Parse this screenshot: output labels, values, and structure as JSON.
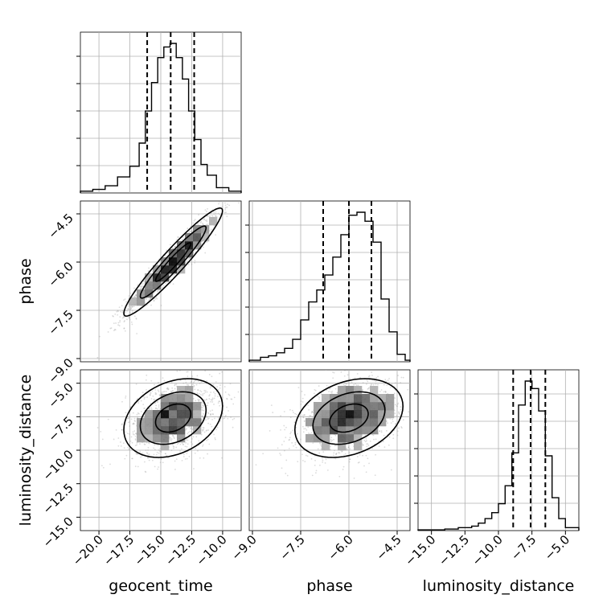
{
  "chart_data": {
    "type": "corner",
    "parameters": [
      {
        "name": "geocent_time",
        "xlabel": "geocent_time",
        "range": [
          -21.5,
          -8.5
        ],
        "ticks": [
          -20.0,
          -17.5,
          -15.0,
          -12.5,
          -10.0
        ],
        "tick_labels": [
          "−20.0",
          "−17.5",
          "−15.0",
          "−12.5",
          "−10.0"
        ],
        "quantiles": [
          -16.1,
          -14.2,
          -12.3
        ],
        "histogram": {
          "bin_edges": [
            -21.5,
            -20.5,
            -19.5,
            -18.5,
            -17.5,
            -16.75,
            -16.25,
            -15.75,
            -15.25,
            -14.75,
            -14.25,
            -13.75,
            -13.25,
            -12.75,
            -12.25,
            -11.75,
            -11.25,
            -10.5,
            -9.5,
            -8.5
          ],
          "heights": [
            1,
            2,
            4,
            9,
            15,
            28,
            46,
            62,
            76,
            82,
            84,
            76,
            64,
            46,
            30,
            16,
            10,
            3,
            1
          ]
        }
      },
      {
        "name": "phase",
        "xlabel": "phase",
        "ylabel": "phase",
        "range": [
          -9.1,
          -4.1
        ],
        "ticks": [
          -9.0,
          -7.5,
          -6.0,
          -4.5
        ],
        "tick_labels": [
          "−9.0",
          "−7.5",
          "−6.0",
          "−4.5"
        ],
        "quantiles": [
          -6.8,
          -6.0,
          -5.3
        ],
        "histogram": {
          "bin_edges": [
            -9.1,
            -8.75,
            -8.5,
            -8.25,
            -8.0,
            -7.75,
            -7.5,
            -7.25,
            -7.0,
            -6.75,
            -6.5,
            -6.25,
            -6.0,
            -5.75,
            -5.5,
            -5.25,
            -5.0,
            -4.75,
            -4.5,
            -4.25,
            -4.1
          ],
          "heights": [
            1,
            3,
            4,
            6,
            9,
            15,
            28,
            40,
            48,
            58,
            70,
            85,
            98,
            100,
            94,
            80,
            42,
            20,
            5,
            1
          ]
        }
      },
      {
        "name": "luminosity_distance",
        "xlabel": "luminosity_distance",
        "ylabel": "luminosity_distance",
        "range": [
          -16.0,
          -4.0
        ],
        "ticks": [
          -15.0,
          -12.5,
          -10.0,
          -7.5,
          -5.0
        ],
        "tick_labels": [
          "−15.0",
          "−12.5",
          "−10.0",
          "−7.5",
          "−5.0"
        ],
        "ytick_labels": [
          "−15.0",
          "−12.5",
          "−10.0",
          "−7.5",
          "−5.0"
        ],
        "quantiles": [
          -8.9,
          -7.6,
          -6.5
        ],
        "histogram": {
          "bin_edges": [
            -16.0,
            -14.0,
            -13.0,
            -12.0,
            -11.5,
            -11.0,
            -10.5,
            -10.0,
            -9.5,
            -9.0,
            -8.5,
            -8.0,
            -7.5,
            -7.0,
            -6.5,
            -6.0,
            -5.5,
            -5.0,
            -4.0
          ],
          "heights": [
            0.5,
            1,
            2,
            3,
            5,
            8,
            12,
            18,
            30,
            52,
            84,
            100,
            95,
            80,
            50,
            22,
            8,
            2
          ]
        }
      }
    ],
    "pairs": [
      {
        "x": "geocent_time",
        "y": "phase",
        "mean": [
          -14.0,
          -6.0
        ],
        "std": [
          1.9,
          0.8
        ],
        "correlation": 0.95
      },
      {
        "x": "geocent_time",
        "y": "luminosity_distance",
        "mean": [
          -14.0,
          -7.6
        ],
        "std": [
          1.9,
          1.4
        ],
        "correlation": 0.3
      },
      {
        "x": "phase",
        "y": "luminosity_distance",
        "mean": [
          -6.0,
          -7.6
        ],
        "std": [
          0.8,
          1.4
        ],
        "correlation": 0.3
      }
    ],
    "grid": true,
    "samples_shown": true,
    "contours_shown": true
  }
}
